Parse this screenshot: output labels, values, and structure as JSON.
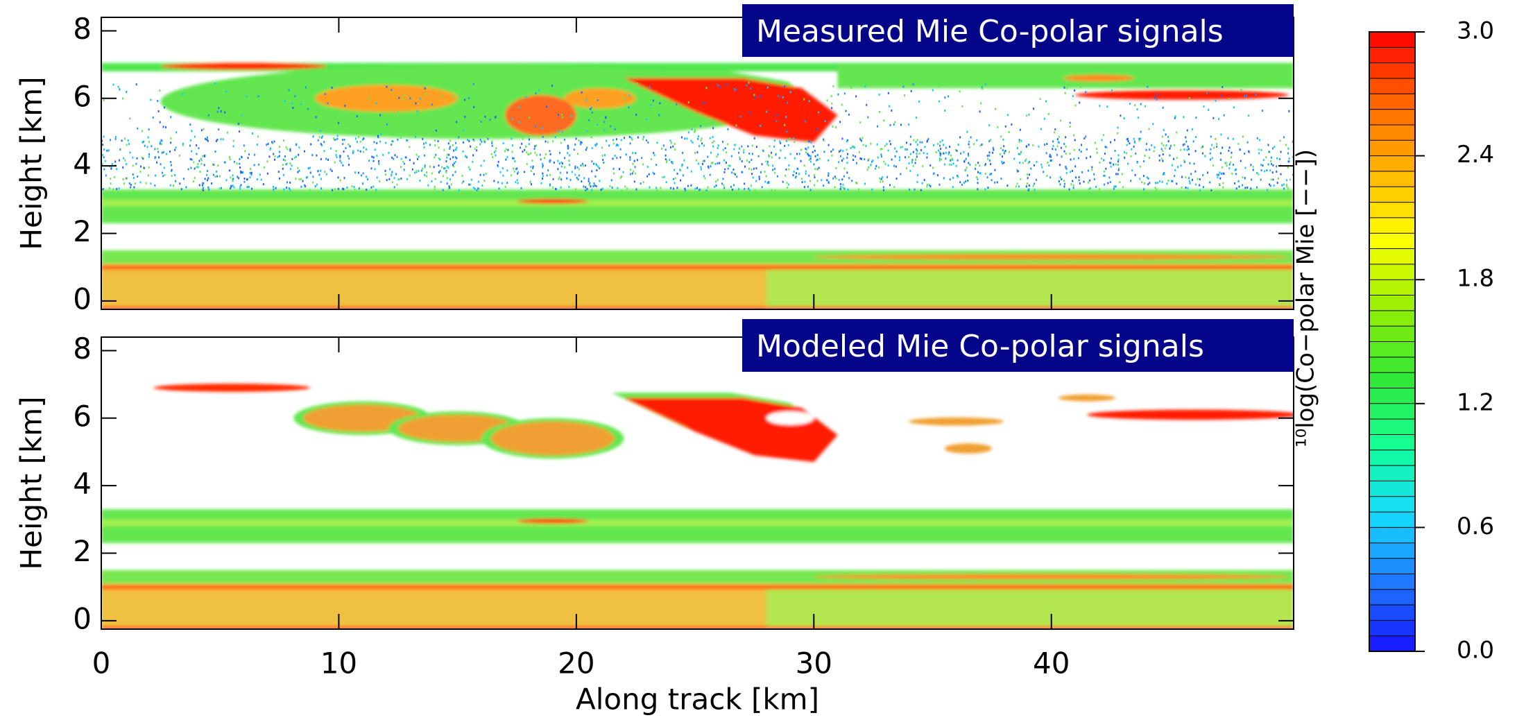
{
  "chart_data": [
    {
      "type": "heatmap",
      "title": "Measured Mie Co-polar signals",
      "ylabel": "Height [km]",
      "xlim": [
        0,
        50.2
      ],
      "xticks": [
        0,
        10,
        20,
        30,
        40
      ],
      "ylim": [
        -0.25,
        8.4
      ],
      "yticks": [
        0,
        2,
        4,
        6,
        8
      ]
    },
    {
      "type": "heatmap",
      "title": "Modeled Mie Co-polar signals",
      "ylabel": "Height [km]",
      "xlabel": "Along track [km]",
      "xlim": [
        0,
        50.2
      ],
      "xticks": [
        0,
        10,
        20,
        30,
        40
      ],
      "ylim": [
        -0.25,
        8.4
      ],
      "yticks": [
        0,
        2,
        4,
        6,
        8
      ]
    },
    {
      "type": "colorbar",
      "label": "¹⁰log(Co−polar Mie [−−])",
      "ylim": [
        0,
        3
      ],
      "yticks": [
        {
          "value": 0,
          "label": "0.0"
        },
        0.6,
        1.2,
        1.8,
        2.4,
        {
          "value": 3,
          "label": "3.0"
        }
      ],
      "colors": [
        "#1414ff",
        "#1e78ff",
        "#14dcff",
        "#14ff96",
        "#32e632",
        "#96f000",
        "#ffff00",
        "#ffb400",
        "#ff6400",
        "#ff0000"
      ]
    }
  ]
}
